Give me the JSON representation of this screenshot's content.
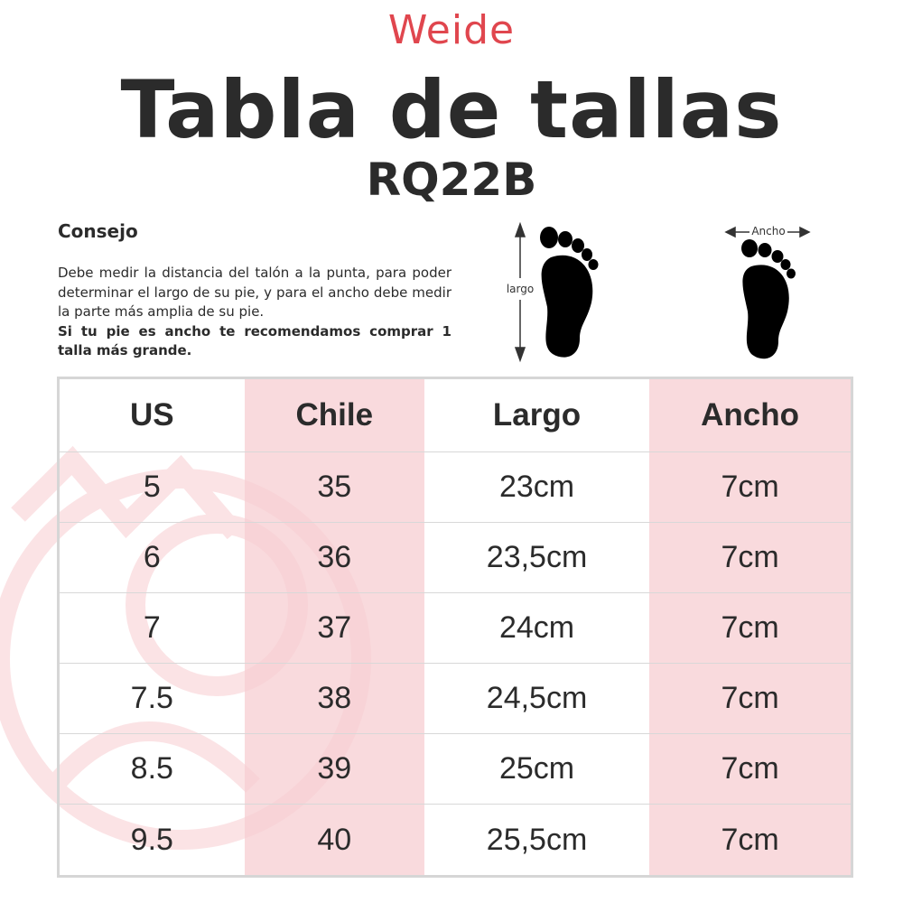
{
  "brand": "Weide",
  "title": "Tabla de tallas",
  "model": "RQ22B",
  "tip": {
    "heading": "Consejo",
    "body": "Debe medir la distancia del talón a la punta, para poder determinar el largo de su pie, y para el ancho debe medir la parte más amplia de su pie.",
    "bold": "Si tu pie es ancho te recomendamos comprar  1 talla más grande."
  },
  "diagram": {
    "length_label": "largo",
    "width_label": "Ancho"
  },
  "colors": {
    "brand": "#e0464e",
    "highlight": "#f7ced2",
    "text": "#2b2b2b"
  },
  "table": {
    "headers": [
      "US",
      "Chile",
      "Largo",
      "Ancho"
    ],
    "rows": [
      [
        "5",
        "35",
        "23cm",
        "7cm"
      ],
      [
        "6",
        "36",
        "23,5cm",
        "7cm"
      ],
      [
        "7",
        "37",
        "24cm",
        "7cm"
      ],
      [
        "7.5",
        "38",
        "24,5cm",
        "7cm"
      ],
      [
        "8.5",
        "39",
        "25cm",
        "7cm"
      ],
      [
        "9.5",
        "40",
        "25,5cm",
        "7cm"
      ]
    ]
  }
}
